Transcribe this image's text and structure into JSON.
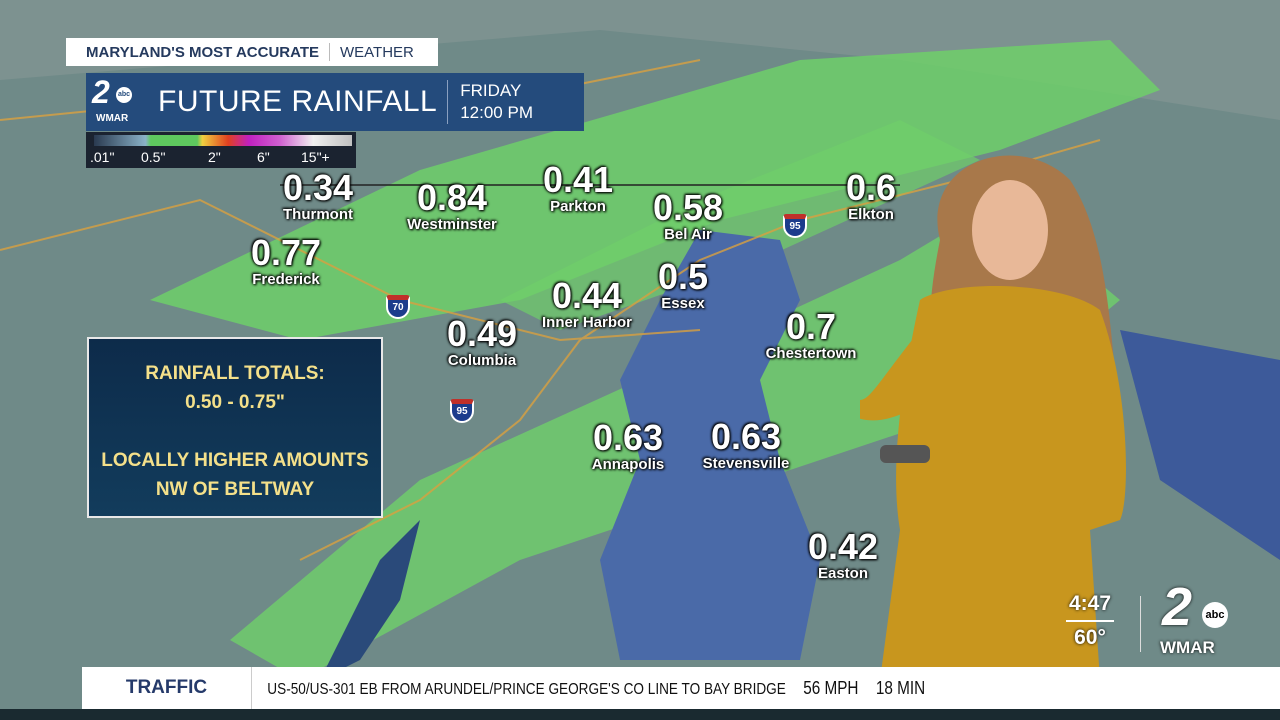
{
  "header": {
    "tagline_main": "MARYLAND'S MOST ACCURATE",
    "tagline_sub": "WEATHER"
  },
  "title_bar": {
    "logo_number": "2",
    "logo_network": "abc",
    "logo_station": "WMAR",
    "title": "FUTURE RAINFALL",
    "day": "FRIDAY",
    "time": "12:00 PM"
  },
  "legend": {
    "labels": [
      ".01\"",
      "0.5\"",
      "2\"",
      "6\"",
      "15\"+"
    ]
  },
  "info_box": {
    "line1": "RAINFALL TOTALS:",
    "line2": "0.50 - 0.75\"",
    "line3": "LOCALLY HIGHER AMOUNTS",
    "line4": "NW OF BELTWAY"
  },
  "map_labels": [
    {
      "value": "0.34",
      "name": "Thurmont"
    },
    {
      "value": "0.84",
      "name": "Westminster"
    },
    {
      "value": "0.41",
      "name": "Parkton"
    },
    {
      "value": "0.58",
      "name": "Bel Air"
    },
    {
      "value": "0.6",
      "name": "Elkton"
    },
    {
      "value": "0.77",
      "name": "Frederick"
    },
    {
      "value": "0.5",
      "name": "Essex"
    },
    {
      "value": "0.44",
      "name": "Inner Harbor"
    },
    {
      "value": "0.49",
      "name": "Columbia"
    },
    {
      "value": "0.7",
      "name": "Chestertown"
    },
    {
      "value": "0.63",
      "name": "Annapolis"
    },
    {
      "value": "0.63",
      "name": "Stevensville"
    },
    {
      "value": "0.42",
      "name": "Easton"
    }
  ],
  "shields": [
    "70",
    "95",
    "95"
  ],
  "status": {
    "time": "4:47",
    "temp": "60°"
  },
  "station_logo": {
    "number": "2",
    "network": "abc",
    "station": "WMAR"
  },
  "ticker": {
    "label": "TRAFFIC",
    "message": "US-50/US-301 EB FROM ARUNDEL/PRINCE GEORGE'S CO LINE TO BAY BRIDGE",
    "speed": "56 MPH",
    "duration": "18 MIN"
  },
  "colors": {
    "rain_green": "#6fcf6a",
    "bay_blue": "#3d5a9a",
    "title_bar": "#244b7c",
    "presenter_dress": "#c8961e"
  }
}
